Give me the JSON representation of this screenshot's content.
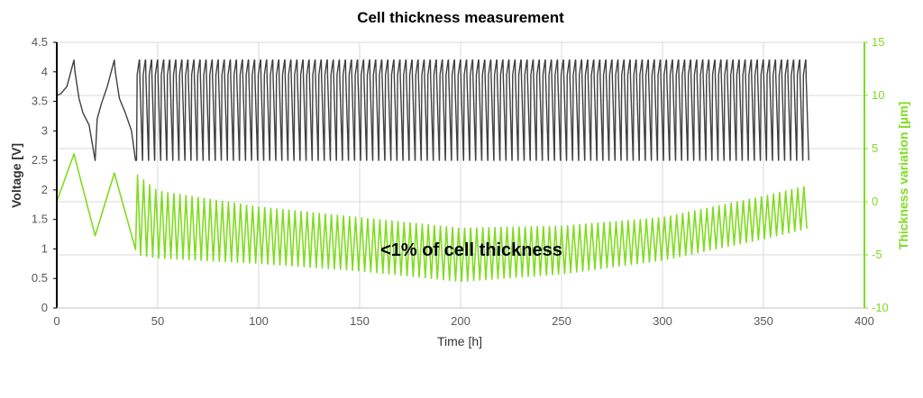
{
  "chart_data": {
    "type": "line",
    "title": "Cell thickness measurement",
    "xlabel": "Time [h]",
    "ylabel": "Voltage [V]",
    "y2label": "Thickness variation [µm]",
    "xlim": [
      0,
      400
    ],
    "ylim": [
      0,
      4.5
    ],
    "y2lim": [
      -10,
      15
    ],
    "xticks": [
      "0",
      "50",
      "100",
      "150",
      "200",
      "250",
      "300",
      "350",
      "400"
    ],
    "yticks": [
      "0",
      "0.5",
      "1",
      "1.5",
      "2",
      "2.5",
      "3",
      "3.5",
      "4",
      "4.5"
    ],
    "y2ticks": [
      "-10",
      "-5",
      "0",
      "5",
      "10",
      "15"
    ],
    "grid": true,
    "annotation": "<1% of cell thickness",
    "colors": {
      "voltage": "#404040",
      "thickness": "#7fdc1f",
      "grid": "#d9d9d9",
      "axis": "#000000"
    },
    "series": [
      {
        "axis": "left",
        "color": "#404040",
        "formation_x": [
          0,
          2,
          5,
          8.5,
          9,
          11,
          13,
          16,
          19,
          20,
          22,
          25,
          28.5,
          29,
          31,
          34,
          37,
          39
        ],
        "formation_y": [
          3.6,
          3.63,
          3.75,
          4.2,
          4.0,
          3.55,
          3.3,
          3.1,
          2.5,
          3.2,
          3.45,
          3.75,
          4.2,
          4.0,
          3.55,
          3.3,
          3.0,
          2.5
        ],
        "cycling": {
          "x_start": 39.5,
          "x_end": 372,
          "cycle_period": 3.0,
          "upper": 4.2,
          "lower": 2.5
        }
      },
      {
        "axis": "right",
        "color": "#7fdc1f",
        "formation_x": [
          0,
          8.5,
          19,
          28.5,
          39
        ],
        "formation_y": [
          0,
          4.5,
          -3.2,
          2.7,
          -4.5
        ],
        "cycling": {
          "x_start": 40,
          "x_end": 372,
          "cycle_period": 3.0,
          "peak_x": [
            40,
            50,
            100,
            150,
            200,
            250,
            300,
            350,
            372
          ],
          "peak_y": [
            2.5,
            1.0,
            -0.5,
            -1.5,
            -2.5,
            -2.3,
            -1.5,
            0.5,
            1.5
          ],
          "trough_x": [
            40,
            50,
            100,
            150,
            200,
            250,
            300,
            350,
            372
          ],
          "trough_y": [
            -5,
            -5.3,
            -5.8,
            -6.5,
            -7.5,
            -6.8,
            -5.5,
            -3.5,
            -2.5
          ]
        }
      }
    ]
  }
}
